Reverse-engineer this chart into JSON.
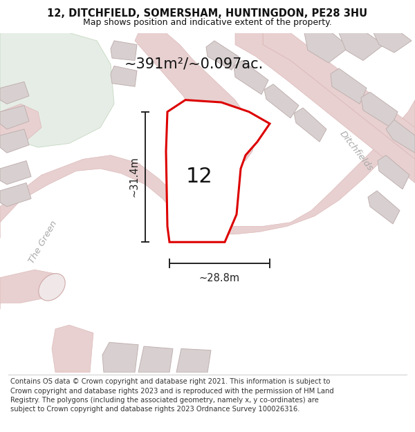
{
  "title": "12, DITCHFIELD, SOMERSHAM, HUNTINGDON, PE28 3HU",
  "subtitle": "Map shows position and indicative extent of the property.",
  "footer": "Contains OS data © Crown copyright and database right 2021. This information is subject to Crown copyright and database rights 2023 and is reproduced with the permission of HM Land Registry. The polygons (including the associated geometry, namely x, y co-ordinates) are subject to Crown copyright and database rights 2023 Ordnance Survey 100026316.",
  "area_label": "~391m²/~0.097ac.",
  "house_number": "12",
  "dim_width": "~28.8m",
  "dim_height": "~31.4m",
  "road_label_1": "Ditchfields",
  "road_label_2": "The Green",
  "bg_map_color": "#f2ecec",
  "green_area_color": "#e6ede6",
  "road_fill": "#e8d0d0",
  "building_fill": "#d8d0d0",
  "building_outline": "#c0b0b0",
  "plot_fill": "#ffffff",
  "plot_outline": "#dd0000",
  "dimension_color": "#222222",
  "title_fontsize": 10.5,
  "subtitle_fontsize": 9,
  "footer_fontsize": 7.2,
  "area_fontsize": 15,
  "road_text_color": "#aaaaaa"
}
